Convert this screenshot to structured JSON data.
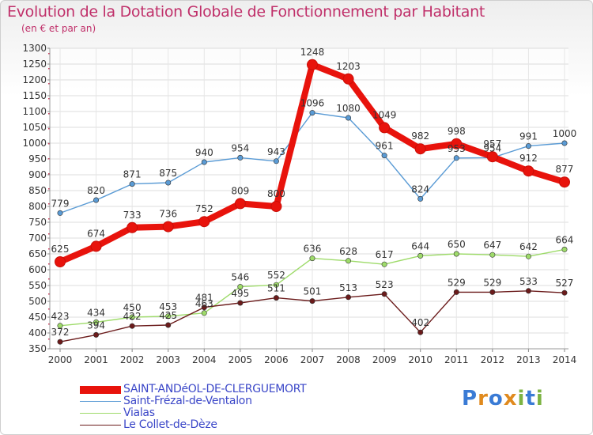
{
  "title": "Evolution de la Dotation Globale de Fonctionnement par Habitant",
  "subtitle": "(en € et par an)",
  "logo": {
    "text": "Proxiti",
    "colors": [
      "#3a7bd5",
      "#e08a1e",
      "#3a7bd5",
      "#e08a1e",
      "#7cb342",
      "#3a7bd5",
      "#7cb342"
    ]
  },
  "chart_data": {
    "type": "line",
    "x": [
      "2000",
      "2001",
      "2002",
      "2003",
      "2004",
      "2005",
      "2006",
      "2007",
      "2008",
      "2009",
      "2010",
      "2011",
      "2012",
      "2013",
      "2014"
    ],
    "ylim": [
      350,
      1300
    ],
    "yticks": [
      350,
      400,
      450,
      500,
      550,
      600,
      650,
      700,
      750,
      800,
      850,
      900,
      950,
      1000,
      1050,
      1100,
      1150,
      1200,
      1250,
      1300
    ],
    "grid": true,
    "legend_position": "bottom-left",
    "series": [
      {
        "name": "SAINT-ANDéOL-DE-CLERGUEMORT",
        "color": "#e8130c",
        "emphasis": true,
        "values": [
          625,
          674,
          733,
          736,
          752,
          809,
          800,
          1248,
          1203,
          1049,
          982,
          998,
          957,
          912,
          877
        ]
      },
      {
        "name": "Saint-Frézal-de-Ventalon",
        "color": "#5a9bd5",
        "values": [
          779,
          820,
          871,
          875,
          940,
          954,
          943,
          1096,
          1080,
          961,
          824,
          953,
          954,
          991,
          1000
        ]
      },
      {
        "name": "Vialas",
        "color": "#9edb6a",
        "values": [
          423,
          434,
          450,
          453,
          463,
          546,
          552,
          636,
          628,
          617,
          644,
          650,
          647,
          642,
          664
        ]
      },
      {
        "name": "Le Collet-de-Dèze",
        "color": "#6b1b1b",
        "values": [
          372,
          394,
          422,
          425,
          481,
          495,
          511,
          501,
          513,
          523,
          402,
          529,
          529,
          533,
          527
        ]
      }
    ]
  }
}
